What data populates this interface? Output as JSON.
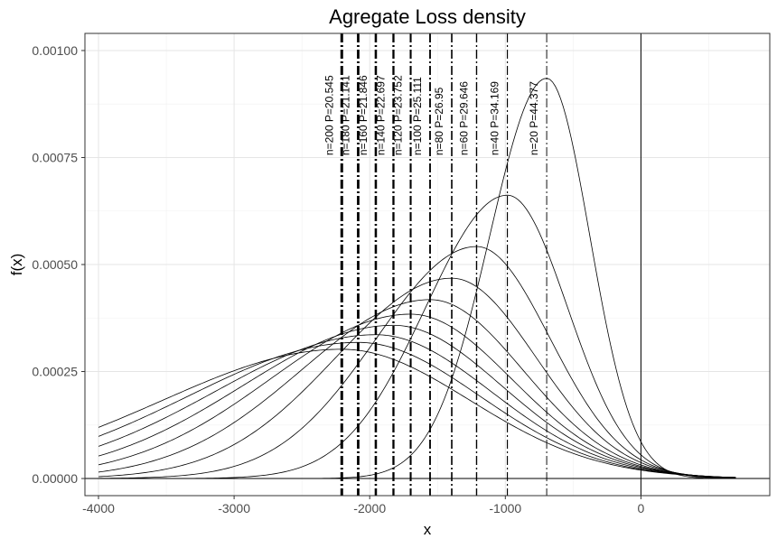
{
  "chart_data": {
    "type": "line",
    "title": "Agregate Loss density",
    "xlabel": "x",
    "ylabel": "f(x)",
    "xlim": [
      -4100,
      950
    ],
    "ylim": [
      -4e-05,
      0.00104
    ],
    "x_ticks": [
      -4000,
      -3000,
      -2000,
      -1000,
      0
    ],
    "x_tick_labels": [
      "-4000",
      "-3000",
      "-2000",
      "-1000",
      "0"
    ],
    "y_ticks": [
      0,
      0.00025,
      0.0005,
      0.00075,
      0.001
    ],
    "y_tick_labels": [
      "0.00000",
      "0.00025",
      "0.00050",
      "0.00075",
      "0.00100"
    ],
    "grid": true,
    "theme": "bw",
    "reference_lines": {
      "horizontal": 0,
      "vertical": 0
    },
    "series": [
      {
        "n": 200,
        "mean": -2206,
        "peak": 0.000302,
        "sd_left": 1318,
        "sd_right": 943,
        "vline_x": -2206,
        "label": "n=200  P=20.545"
      },
      {
        "n": 180,
        "mean": -2085,
        "peak": 0.000318,
        "sd_left": 1251,
        "sd_right": 896,
        "vline_x": -2085,
        "label": "n=180  P=21.141"
      },
      {
        "n": 160,
        "mean": -1955,
        "peak": 0.000336,
        "sd_left": 1182,
        "sd_right": 848,
        "vline_x": -1955,
        "label": "n=160  P=21.846"
      },
      {
        "n": 140,
        "mean": -1825,
        "peak": 0.000358,
        "sd_left": 1110,
        "sd_right": 797,
        "vline_x": -1825,
        "label": "n=140  P=22.697"
      },
      {
        "n": 120,
        "mean": -1698,
        "peak": 0.000384,
        "sd_left": 1033,
        "sd_right": 744,
        "vline_x": -1698,
        "label": "n=120  P=23.752"
      },
      {
        "n": 100,
        "mean": -1555,
        "peak": 0.000418,
        "sd_left": 948,
        "sd_right": 685,
        "vline_x": -1555,
        "label": "n=100  P=25.111"
      },
      {
        "n": 80,
        "mean": -1395,
        "peak": 0.000468,
        "sd_left": 852,
        "sd_right": 620,
        "vline_x": -1395,
        "label": "n=80  P=26.95"
      },
      {
        "n": 60,
        "mean": -1212,
        "peak": 0.000542,
        "sd_left": 736,
        "sd_right": 540,
        "vline_x": -1212,
        "label": "n=60  P=29.646"
      },
      {
        "n": 40,
        "mean": -985,
        "peak": 0.000662,
        "sd_left": 600,
        "sd_right": 442,
        "vline_x": -985,
        "label": "n=40  P=34.169"
      },
      {
        "n": 20,
        "mean": -695,
        "peak": 0.000935,
        "sd_left": 420,
        "sd_right": 318,
        "vline_x": -695,
        "label": "n=20  P=44.377"
      }
    ],
    "x_range": [
      -4000,
      700
    ]
  }
}
